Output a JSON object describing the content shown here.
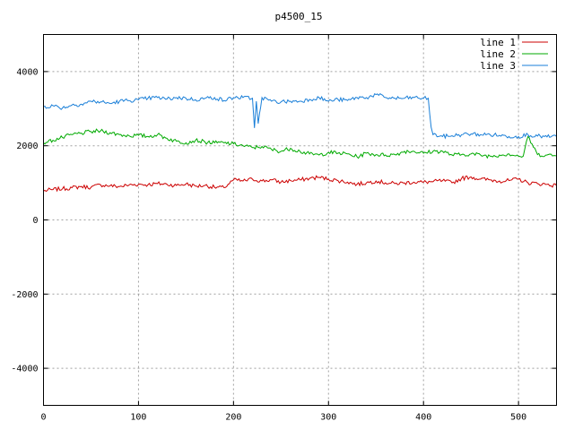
{
  "chart_data": {
    "type": "line",
    "title": "p4500_15",
    "xlabel": "",
    "ylabel": "",
    "xlim": [
      0,
      540
    ],
    "ylim": [
      -5000,
      5000
    ],
    "xticks": [
      0,
      100,
      200,
      300,
      400,
      500
    ],
    "yticks": [
      -4000,
      -2000,
      0,
      2000,
      4000
    ],
    "grid": true,
    "legend_position": "top-right",
    "series": [
      {
        "name": "line 1",
        "color": "#cc0000",
        "x": [
          0,
          10,
          20,
          30,
          40,
          50,
          60,
          70,
          80,
          90,
          100,
          110,
          120,
          130,
          140,
          150,
          160,
          170,
          180,
          190,
          200,
          210,
          220,
          230,
          240,
          250,
          260,
          270,
          280,
          290,
          300,
          310,
          320,
          330,
          340,
          350,
          360,
          370,
          380,
          390,
          400,
          410,
          420,
          430,
          440,
          450,
          460,
          470,
          480,
          490,
          500,
          510,
          520,
          530,
          540
        ],
        "y": [
          780,
          820,
          840,
          870,
          900,
          880,
          950,
          920,
          900,
          940,
          960,
          950,
          980,
          960,
          930,
          970,
          910,
          930,
          880,
          870,
          1080,
          1050,
          1100,
          1050,
          1080,
          1020,
          1060,
          1080,
          1120,
          1150,
          1100,
          1060,
          1020,
          960,
          1000,
          1050,
          1000,
          980,
          1000,
          1020,
          1020,
          1030,
          1060,
          1000,
          1120,
          1160,
          1100,
          1080,
          1050,
          1060,
          1100,
          1000,
          980,
          960,
          920
        ]
      },
      {
        "name": "line 2",
        "color": "#00aa00",
        "x": [
          0,
          10,
          20,
          30,
          40,
          50,
          60,
          70,
          80,
          90,
          100,
          110,
          120,
          130,
          140,
          150,
          160,
          170,
          180,
          190,
          200,
          210,
          220,
          230,
          240,
          250,
          260,
          270,
          280,
          290,
          300,
          310,
          320,
          330,
          340,
          350,
          360,
          370,
          380,
          390,
          400,
          410,
          420,
          430,
          440,
          450,
          460,
          470,
          480,
          490,
          500,
          505,
          510,
          520,
          530,
          540
        ],
        "y": [
          2080,
          2150,
          2220,
          2300,
          2340,
          2380,
          2400,
          2350,
          2300,
          2270,
          2280,
          2250,
          2300,
          2200,
          2120,
          2080,
          2150,
          2100,
          2080,
          2080,
          2050,
          2000,
          1950,
          1980,
          1900,
          1850,
          1930,
          1850,
          1780,
          1750,
          1820,
          1800,
          1780,
          1700,
          1800,
          1760,
          1750,
          1760,
          1850,
          1850,
          1800,
          1850,
          1850,
          1750,
          1760,
          1780,
          1750,
          1720,
          1750,
          1780,
          1720,
          1720,
          2250,
          1760,
          1750,
          1730
        ]
      },
      {
        "name": "line 3",
        "color": "#1a7fd8",
        "x": [
          0,
          10,
          20,
          30,
          40,
          50,
          60,
          70,
          80,
          90,
          100,
          110,
          120,
          130,
          140,
          150,
          160,
          170,
          180,
          190,
          200,
          210,
          220,
          222,
          224,
          226,
          230,
          240,
          250,
          260,
          270,
          280,
          290,
          300,
          310,
          320,
          330,
          340,
          350,
          360,
          370,
          380,
          390,
          400,
          405,
          408,
          410,
          420,
          430,
          440,
          450,
          460,
          470,
          480,
          490,
          500,
          510,
          520,
          530,
          540
        ],
        "y": [
          3050,
          3080,
          3020,
          3100,
          3120,
          3200,
          3180,
          3140,
          3200,
          3220,
          3240,
          3280,
          3300,
          3260,
          3300,
          3280,
          3240,
          3280,
          3300,
          3220,
          3300,
          3300,
          3280,
          2480,
          3200,
          2600,
          3300,
          3200,
          3180,
          3200,
          3200,
          3250,
          3300,
          3200,
          3250,
          3220,
          3300,
          3300,
          3380,
          3300,
          3280,
          3280,
          3300,
          3280,
          3280,
          2500,
          2300,
          2250,
          2270,
          2300,
          2320,
          2300,
          2300,
          2280,
          2250,
          2250,
          2300,
          2260,
          2240,
          2250
        ]
      }
    ]
  }
}
